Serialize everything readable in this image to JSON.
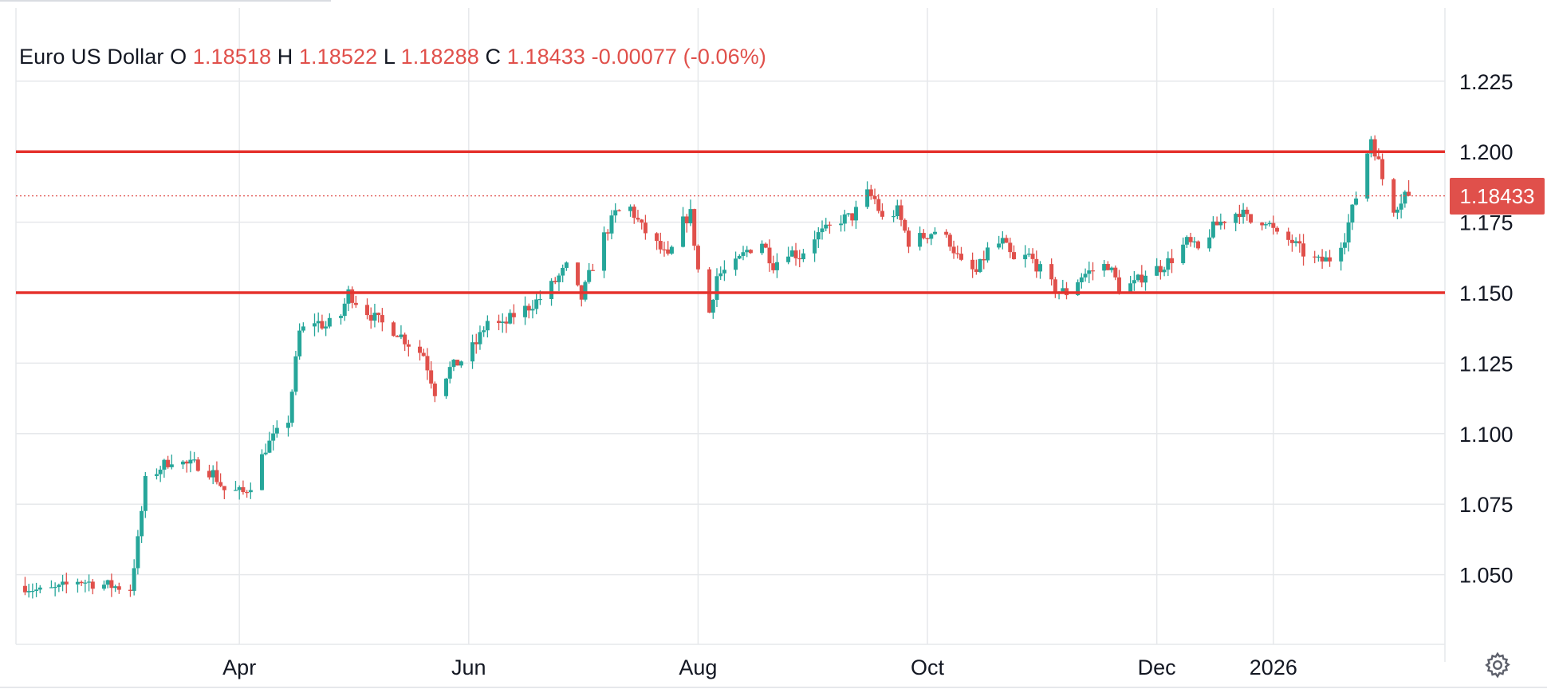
{
  "legend": {
    "symbol": "Euro US Dollar",
    "open_label": "O",
    "open": "1.18518",
    "high_label": "H",
    "high": "1.18522",
    "low_label": "L",
    "low": "1.18288",
    "close_label": "C",
    "close": "1.18433",
    "change": "-0.00077",
    "change_pct": "(-0.06%)"
  },
  "last_price_tag": "1.18433",
  "colors": {
    "up": "#26a69a",
    "down": "#e0504b",
    "level_line": "#e5322d",
    "grid": "#e6e8eb"
  },
  "icons": {
    "settings": "gear-icon"
  },
  "chart_data": {
    "type": "candlestick",
    "title": "Euro US Dollar",
    "xlabel": "",
    "ylabel": "",
    "ylim": [
      1.025,
      1.25
    ],
    "y_ticks": [
      "1.050",
      "1.075",
      "1.100",
      "1.125",
      "1.150",
      "1.175",
      "1.200",
      "1.225"
    ],
    "y_tick_values": [
      1.05,
      1.075,
      1.1,
      1.125,
      1.15,
      1.175,
      1.2,
      1.225
    ],
    "x_ticks": [
      "Apr",
      "Jun",
      "Aug",
      "Oct",
      "Dec",
      "2026"
    ],
    "x_tick_dates": [
      "2025-04-01",
      "2025-06-01",
      "2025-08-01",
      "2025-10-01",
      "2025-12-01",
      "2026-01-01"
    ],
    "x_range": [
      "2025-02-01",
      "2026-02-08"
    ],
    "grid": true,
    "horizontal_lines": [
      1.2,
      1.15
    ],
    "last_price": 1.18433,
    "close_path": [
      [
        "2025-02-03",
        1.046
      ],
      [
        "2025-02-07",
        1.044
      ],
      [
        "2025-02-12",
        1.045
      ],
      [
        "2025-02-17",
        1.048
      ],
      [
        "2025-02-21",
        1.047
      ],
      [
        "2025-02-26",
        1.046
      ],
      [
        "2025-03-03",
        1.045
      ],
      [
        "2025-03-05",
        1.062
      ],
      [
        "2025-03-07",
        1.083
      ],
      [
        "2025-03-11",
        1.088
      ],
      [
        "2025-03-14",
        1.091
      ],
      [
        "2025-03-18",
        1.089
      ],
      [
        "2025-03-21",
        1.089
      ],
      [
        "2025-03-25",
        1.086
      ],
      [
        "2025-03-28",
        1.08
      ],
      [
        "2025-04-02",
        1.079
      ],
      [
        "2025-04-04",
        1.082
      ],
      [
        "2025-04-08",
        1.095
      ],
      [
        "2025-04-11",
        1.1
      ],
      [
        "2025-04-14",
        1.105
      ],
      [
        "2025-04-17",
        1.136
      ],
      [
        "2025-04-21",
        1.14
      ],
      [
        "2025-04-24",
        1.138
      ],
      [
        "2025-04-28",
        1.142
      ],
      [
        "2025-04-30",
        1.15
      ],
      [
        "2025-05-02",
        1.147
      ],
      [
        "2025-05-06",
        1.142
      ],
      [
        "2025-05-09",
        1.139
      ],
      [
        "2025-05-13",
        1.136
      ],
      [
        "2025-05-16",
        1.132
      ],
      [
        "2025-05-20",
        1.128
      ],
      [
        "2025-05-23",
        1.115
      ],
      [
        "2025-05-27",
        1.123
      ],
      [
        "2025-05-30",
        1.126
      ],
      [
        "2025-06-03",
        1.132
      ],
      [
        "2025-06-06",
        1.14
      ],
      [
        "2025-06-10",
        1.138
      ],
      [
        "2025-06-13",
        1.142
      ],
      [
        "2025-06-17",
        1.145
      ],
      [
        "2025-06-20",
        1.148
      ],
      [
        "2025-06-24",
        1.154
      ],
      [
        "2025-06-27",
        1.159
      ],
      [
        "2025-07-01",
        1.148
      ],
      [
        "2025-07-03",
        1.156
      ],
      [
        "2025-07-07",
        1.17
      ],
      [
        "2025-07-10",
        1.178
      ],
      [
        "2025-07-14",
        1.18
      ],
      [
        "2025-07-17",
        1.173
      ],
      [
        "2025-07-21",
        1.167
      ],
      [
        "2025-07-24",
        1.162
      ],
      [
        "2025-07-28",
        1.175
      ],
      [
        "2025-07-30",
        1.178
      ],
      [
        "2025-08-01",
        1.158
      ],
      [
        "2025-08-04",
        1.143
      ],
      [
        "2025-08-06",
        1.156
      ],
      [
        "2025-08-11",
        1.16
      ],
      [
        "2025-08-14",
        1.165
      ],
      [
        "2025-08-18",
        1.168
      ],
      [
        "2025-08-21",
        1.16
      ],
      [
        "2025-08-25",
        1.165
      ],
      [
        "2025-08-28",
        1.163
      ],
      [
        "2025-09-01",
        1.17
      ],
      [
        "2025-09-04",
        1.172
      ],
      [
        "2025-09-08",
        1.176
      ],
      [
        "2025-09-11",
        1.177
      ],
      [
        "2025-09-15",
        1.185
      ],
      [
        "2025-09-17",
        1.183
      ],
      [
        "2025-09-19",
        1.176
      ],
      [
        "2025-09-23",
        1.179
      ],
      [
        "2025-09-26",
        1.168
      ],
      [
        "2025-09-30",
        1.17
      ],
      [
        "2025-10-03",
        1.172
      ],
      [
        "2025-10-07",
        1.168
      ],
      [
        "2025-10-10",
        1.16
      ],
      [
        "2025-10-14",
        1.157
      ],
      [
        "2025-10-17",
        1.165
      ],
      [
        "2025-10-21",
        1.168
      ],
      [
        "2025-10-24",
        1.161
      ],
      [
        "2025-10-28",
        1.163
      ],
      [
        "2025-10-31",
        1.158
      ],
      [
        "2025-11-04",
        1.151
      ],
      [
        "2025-11-07",
        1.15
      ],
      [
        "2025-11-11",
        1.156
      ],
      [
        "2025-11-14",
        1.158
      ],
      [
        "2025-11-18",
        1.16
      ],
      [
        "2025-11-21",
        1.152
      ],
      [
        "2025-11-25",
        1.153
      ],
      [
        "2025-11-28",
        1.157
      ],
      [
        "2025-12-02",
        1.159
      ],
      [
        "2025-12-05",
        1.162
      ],
      [
        "2025-12-09",
        1.168
      ],
      [
        "2025-12-12",
        1.165
      ],
      [
        "2025-12-16",
        1.173
      ],
      [
        "2025-12-19",
        1.176
      ],
      [
        "2025-12-23",
        1.179
      ],
      [
        "2025-12-26",
        1.175
      ],
      [
        "2025-12-30",
        1.176
      ],
      [
        "2026-01-02",
        1.17
      ],
      [
        "2026-01-06",
        1.168
      ],
      [
        "2026-01-09",
        1.164
      ],
      [
        "2026-01-13",
        1.161
      ],
      [
        "2026-01-16",
        1.162
      ],
      [
        "2026-01-20",
        1.17
      ],
      [
        "2026-01-23",
        1.184
      ],
      [
        "2026-01-27",
        1.205
      ],
      [
        "2026-01-29",
        1.196
      ],
      [
        "2026-01-31",
        1.185
      ],
      [
        "2026-02-02",
        1.18
      ],
      [
        "2026-02-04",
        1.183
      ],
      [
        "2026-02-06",
        1.188
      ],
      [
        "2026-02-08",
        1.18433
      ]
    ]
  }
}
